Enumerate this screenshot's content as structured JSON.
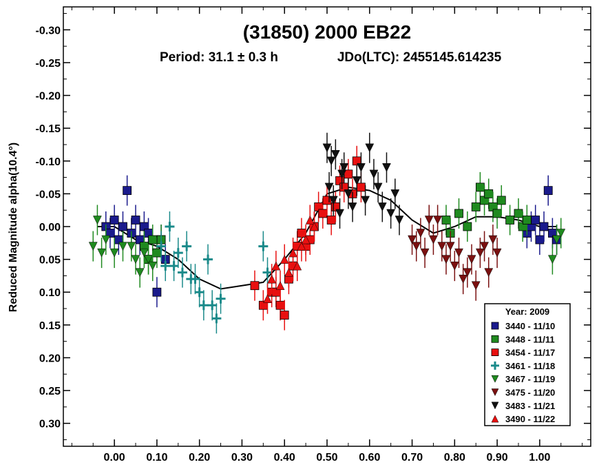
{
  "chart_data": {
    "type": "scatter",
    "title": "(31850) 2000 EB22",
    "subtitle_period": "Period: 31.1 ± 0.3 h",
    "subtitle_epoch": "JDo(LTC): 2455145.614235",
    "xlabel": "",
    "ylabel": "Reduced Magnitude alpha(10.4°)",
    "xlim": [
      -0.12,
      1.12
    ],
    "ylim": [
      0.335,
      -0.335
    ],
    "y_inverted": true,
    "grid": false,
    "xticks": [
      "0.00",
      "0.10",
      "0.20",
      "0.30",
      "0.40",
      "0.50",
      "0.60",
      "0.70",
      "0.80",
      "0.90",
      "1.00"
    ],
    "yticks": [
      "-0.30",
      "-0.25",
      "-0.20",
      "-0.15",
      "-0.10",
      "-0.05",
      "0.00",
      "0.05",
      "0.10",
      "0.15",
      "0.20",
      "0.25",
      "0.30"
    ],
    "legend": {
      "title": "Year: 2009",
      "placement": "bottom-right",
      "entries": [
        {
          "label": "3440 - 11/10",
          "color": "#1a1a8c",
          "marker": "square"
        },
        {
          "label": "3448 - 11/11",
          "color": "#1f8a1f",
          "marker": "square"
        },
        {
          "label": "3454 - 11/17",
          "color": "#e81010",
          "marker": "square"
        },
        {
          "label": "3461 - 11/18",
          "color": "#1a8a8a",
          "marker": "plus"
        },
        {
          "label": "3467 - 11/19",
          "color": "#1f8a1f",
          "marker": "triangle-down"
        },
        {
          "label": "3475 - 11/20",
          "color": "#7a1010",
          "marker": "triangle-down"
        },
        {
          "label": "3483 - 11/21",
          "color": "#111111",
          "marker": "triangle-down"
        },
        {
          "label": "3490 - 11/22",
          "color": "#e81010",
          "marker": "triangle-up"
        }
      ]
    },
    "fit_curve": {
      "x": [
        -0.04,
        0.0,
        0.05,
        0.1,
        0.15,
        0.2,
        0.25,
        0.3,
        0.35,
        0.4,
        0.45,
        0.5,
        0.55,
        0.6,
        0.65,
        0.7,
        0.75,
        0.8,
        0.85,
        0.9,
        0.95,
        1.0,
        1.04
      ],
      "y": [
        0.0,
        0.0,
        0.02,
        0.03,
        0.05,
        0.08,
        0.095,
        0.09,
        0.085,
        0.05,
        0.01,
        -0.05,
        -0.06,
        -0.055,
        -0.04,
        -0.01,
        0.01,
        0.0,
        -0.015,
        -0.015,
        -0.01,
        0.0,
        0.0
      ]
    },
    "series": [
      {
        "name": "3440 - 11/10",
        "x": [
          -0.02,
          -0.01,
          0.0,
          0.01,
          0.02,
          0.03,
          0.04,
          0.05,
          0.06,
          0.07,
          0.08,
          0.1,
          0.11,
          0.12,
          0.97,
          0.98,
          0.99,
          1.0,
          1.01,
          1.02,
          1.03,
          1.04
        ],
        "y": [
          0.0,
          0.01,
          -0.01,
          0.02,
          0.0,
          -0.055,
          0.01,
          -0.01,
          0.02,
          0.0,
          0.01,
          0.1,
          0.02,
          0.05,
          0.01,
          0.0,
          -0.01,
          0.02,
          0.0,
          -0.055,
          0.01,
          0.02
        ]
      },
      {
        "name": "3448 - 11/11",
        "x": [
          0.07,
          0.08,
          0.09,
          0.1,
          0.11,
          0.78,
          0.79,
          0.81,
          0.83,
          0.85,
          0.86,
          0.87,
          0.88,
          0.89,
          0.9,
          0.91,
          0.93,
          0.95,
          0.96,
          0.97
        ],
        "y": [
          0.03,
          0.05,
          0.02,
          0.04,
          0.02,
          -0.01,
          0.01,
          -0.02,
          0.0,
          -0.03,
          -0.06,
          -0.04,
          -0.05,
          -0.03,
          -0.02,
          -0.04,
          -0.01,
          -0.02,
          0.0,
          -0.01
        ]
      },
      {
        "name": "3454 - 11/17",
        "x": [
          0.33,
          0.35,
          0.37,
          0.38,
          0.39,
          0.4,
          0.41,
          0.42,
          0.43,
          0.44,
          0.45,
          0.46,
          0.47,
          0.48,
          0.49,
          0.5,
          0.51,
          0.52,
          0.53,
          0.54,
          0.55,
          0.56,
          0.57,
          0.58
        ],
        "y": [
          0.09,
          0.12,
          0.1,
          0.1,
          0.12,
          0.135,
          0.08,
          0.06,
          0.03,
          0.01,
          0.03,
          0.02,
          0.0,
          -0.03,
          -0.02,
          -0.04,
          -0.01,
          -0.03,
          -0.07,
          -0.06,
          -0.08,
          -0.05,
          -0.1,
          -0.06
        ]
      },
      {
        "name": "3461 - 11/18",
        "x": [
          0.11,
          0.12,
          0.13,
          0.14,
          0.15,
          0.16,
          0.17,
          0.18,
          0.19,
          0.2,
          0.21,
          0.22,
          0.23,
          0.24,
          0.25,
          0.35,
          0.36
        ],
        "y": [
          0.03,
          0.06,
          0.0,
          0.06,
          0.04,
          0.07,
          0.03,
          0.08,
          0.08,
          0.1,
          0.12,
          0.05,
          0.12,
          0.14,
          0.11,
          0.03,
          0.07
        ]
      },
      {
        "name": "3467 - 11/19",
        "x": [
          -0.05,
          -0.04,
          -0.03,
          -0.02,
          0.0,
          0.02,
          0.04,
          0.05,
          0.06,
          0.07,
          0.08,
          0.09,
          1.03,
          1.04,
          1.05
        ],
        "y": [
          0.03,
          -0.01,
          0.04,
          0.02,
          0.04,
          0.03,
          0.03,
          0.05,
          0.07,
          0.04,
          0.05,
          0.06,
          0.05,
          0.02,
          0.01
        ]
      },
      {
        "name": "3475 - 11/20",
        "x": [
          0.7,
          0.71,
          0.72,
          0.73,
          0.74,
          0.75,
          0.76,
          0.77,
          0.78,
          0.79,
          0.8,
          0.81,
          0.82,
          0.83,
          0.84,
          0.85,
          0.86,
          0.87,
          0.88,
          0.89,
          0.9
        ],
        "y": [
          0.02,
          0.03,
          0.01,
          0.04,
          -0.01,
          0.02,
          -0.01,
          0.03,
          0.05,
          0.03,
          0.06,
          0.04,
          0.08,
          0.07,
          0.05,
          0.09,
          0.04,
          0.03,
          0.07,
          0.02,
          0.04
        ]
      },
      {
        "name": "3483 - 11/21",
        "x": [
          0.5,
          0.505,
          0.51,
          0.515,
          0.52,
          0.53,
          0.535,
          0.54,
          0.55,
          0.56,
          0.57,
          0.58,
          0.59,
          0.6,
          0.61,
          0.62,
          0.63,
          0.64,
          0.65,
          0.66,
          0.67
        ],
        "y": [
          -0.12,
          -0.06,
          -0.1,
          -0.04,
          -0.11,
          -0.02,
          -0.08,
          -0.09,
          -0.05,
          -0.03,
          -0.07,
          -0.09,
          -0.04,
          -0.12,
          -0.08,
          -0.06,
          -0.03,
          -0.09,
          -0.02,
          -0.05,
          -0.01
        ]
      },
      {
        "name": "3490 - 11/22",
        "x": [
          0.36,
          0.37,
          0.38,
          0.39,
          0.4,
          0.41,
          0.42,
          0.43,
          0.44,
          0.45,
          0.46,
          0.47
        ],
        "y": [
          0.11,
          0.08,
          0.06,
          0.09,
          0.05,
          0.07,
          0.04,
          0.06,
          0.03,
          0.02,
          -0.01,
          0.0
        ]
      }
    ]
  }
}
